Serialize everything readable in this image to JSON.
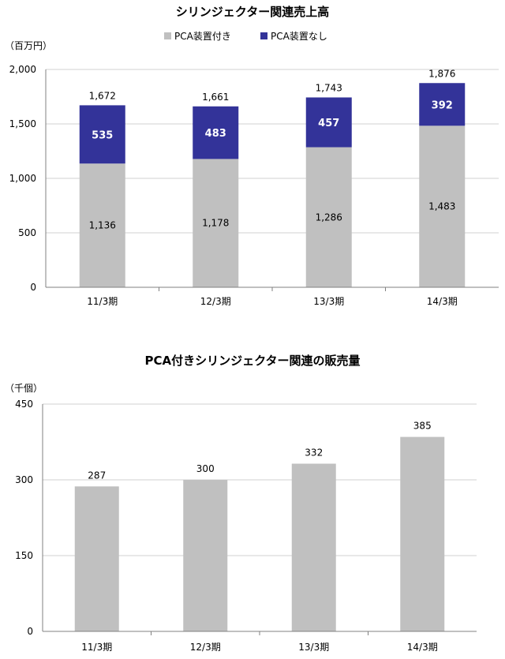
{
  "chart_data": [
    {
      "type": "bar",
      "stacked": true,
      "title": "シリンジェクター関連売上高",
      "unit_label": "（百万円）",
      "categories": [
        "11/3期",
        "12/3期",
        "13/3期",
        "14/3期"
      ],
      "series": [
        {
          "name": "PCA装置付き",
          "values": [
            1136,
            1178,
            1286,
            1483
          ],
          "color": "#c0c0c0"
        },
        {
          "name": "PCA装置なし",
          "values": [
            535,
            483,
            457,
            392
          ],
          "color": "#333399"
        }
      ],
      "totals": [
        1672,
        1661,
        1743,
        1876
      ],
      "ylim": [
        0,
        2000
      ],
      "yticks": [
        0,
        500,
        1000,
        1500,
        2000
      ],
      "ytick_labels": [
        "0",
        "500",
        "1,000",
        "1,500",
        "2,000"
      ],
      "value_labels": {
        "bottom": [
          "1,136",
          "1,178",
          "1,286",
          "1,483"
        ],
        "top": [
          "535",
          "483",
          "457",
          "392"
        ],
        "totals": [
          "1,672",
          "1,661",
          "1,743",
          "1,876"
        ]
      },
      "legend": "top-center",
      "grid": true
    },
    {
      "type": "bar",
      "title": "PCA付きシリンジェクター関連の販売量",
      "unit_label": "（千個）",
      "categories": [
        "11/3期",
        "12/3期",
        "13/3期",
        "14/3期"
      ],
      "values": [
        287,
        300,
        332,
        385
      ],
      "value_labels": [
        "287",
        "300",
        "332",
        "385"
      ],
      "color": "#c0c0c0",
      "ylim": [
        0,
        450
      ],
      "yticks": [
        0,
        150,
        300,
        450
      ],
      "ytick_labels": [
        "0",
        "150",
        "300",
        "450"
      ],
      "grid": true
    }
  ]
}
